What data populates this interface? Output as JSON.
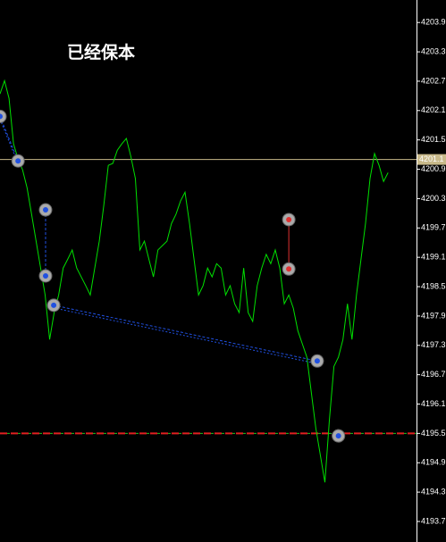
{
  "chart_data": {
    "type": "line",
    "title": "已经保本",
    "title_color": "#f07c28",
    "background": "#000000",
    "line_color": "#00e000",
    "xlim": [
      0,
      92.3
    ],
    "ylim": [
      4193.28,
      4204.36
    ],
    "yticks": [
      4203.9,
      4203.3,
      4202.7,
      4202.1,
      4201.5,
      4200.9,
      4200.3,
      4199.7,
      4199.1,
      4198.5,
      4197.9,
      4197.3,
      4196.7,
      4196.1,
      4195.5,
      4194.9,
      4194.3,
      4193.7
    ],
    "values": [
      4202.44,
      4202.71,
      4202.35,
      4201.42,
      4201.11,
      4200.89,
      4200.52,
      4199.98,
      4199.43,
      4198.88,
      4198.33,
      4197.42,
      4197.97,
      4198.33,
      4198.88,
      4199.06,
      4199.25,
      4198.88,
      4198.7,
      4198.52,
      4198.33,
      4198.88,
      4199.43,
      4200.16,
      4200.98,
      4201.02,
      4201.29,
      4201.42,
      4201.53,
      4201.16,
      4200.71,
      4199.25,
      4199.43,
      4199.06,
      4198.7,
      4199.25,
      4199.34,
      4199.43,
      4199.79,
      4199.98,
      4200.25,
      4200.43,
      4199.79,
      4199.06,
      4198.33,
      4198.52,
      4198.88,
      4198.7,
      4198.97,
      4198.88,
      4198.33,
      4198.52,
      4198.15,
      4197.97,
      4198.88,
      4197.97,
      4197.79,
      4198.52,
      4198.88,
      4199.16,
      4198.97,
      4199.25,
      4198.88,
      4198.15,
      4198.33,
      4198.06,
      4197.6,
      4197.33,
      4197.06,
      4196.33,
      4195.6,
      4195.05,
      4194.5,
      4195.78,
      4196.87,
      4197.06,
      4197.42,
      4198.15,
      4197.42,
      4198.33,
      4199.06,
      4199.79,
      4200.71,
      4201.22,
      4200.98,
      4200.65,
      4200.83
    ],
    "current_price": {
      "value": 4201.1,
      "color": "#c8b98a"
    },
    "level": {
      "value": 4195.5,
      "colors": [
        "#e02020",
        "#20c020"
      ]
    },
    "trades": [
      {
        "open_x": 0,
        "open": 4201.98,
        "close_x": 4,
        "close": 4201.07,
        "color": "#2050e0"
      },
      {
        "open_x": 10.1,
        "open": 4200.07,
        "close_x": 10.1,
        "close": 4198.72,
        "color": "#2050e0"
      },
      {
        "open_x": 11.9,
        "open": 4198.12,
        "close_x": 70.3,
        "close": 4196.98,
        "color": "#2050e0"
      },
      {
        "open_x": 64,
        "open": 4199.87,
        "close_x": 64,
        "close": 4198.86,
        "color": "#e03030"
      },
      {
        "open_x": 75,
        "open": 4195.45,
        "close_x": 75,
        "close": 4195.45,
        "color": "#2050e0"
      }
    ]
  }
}
